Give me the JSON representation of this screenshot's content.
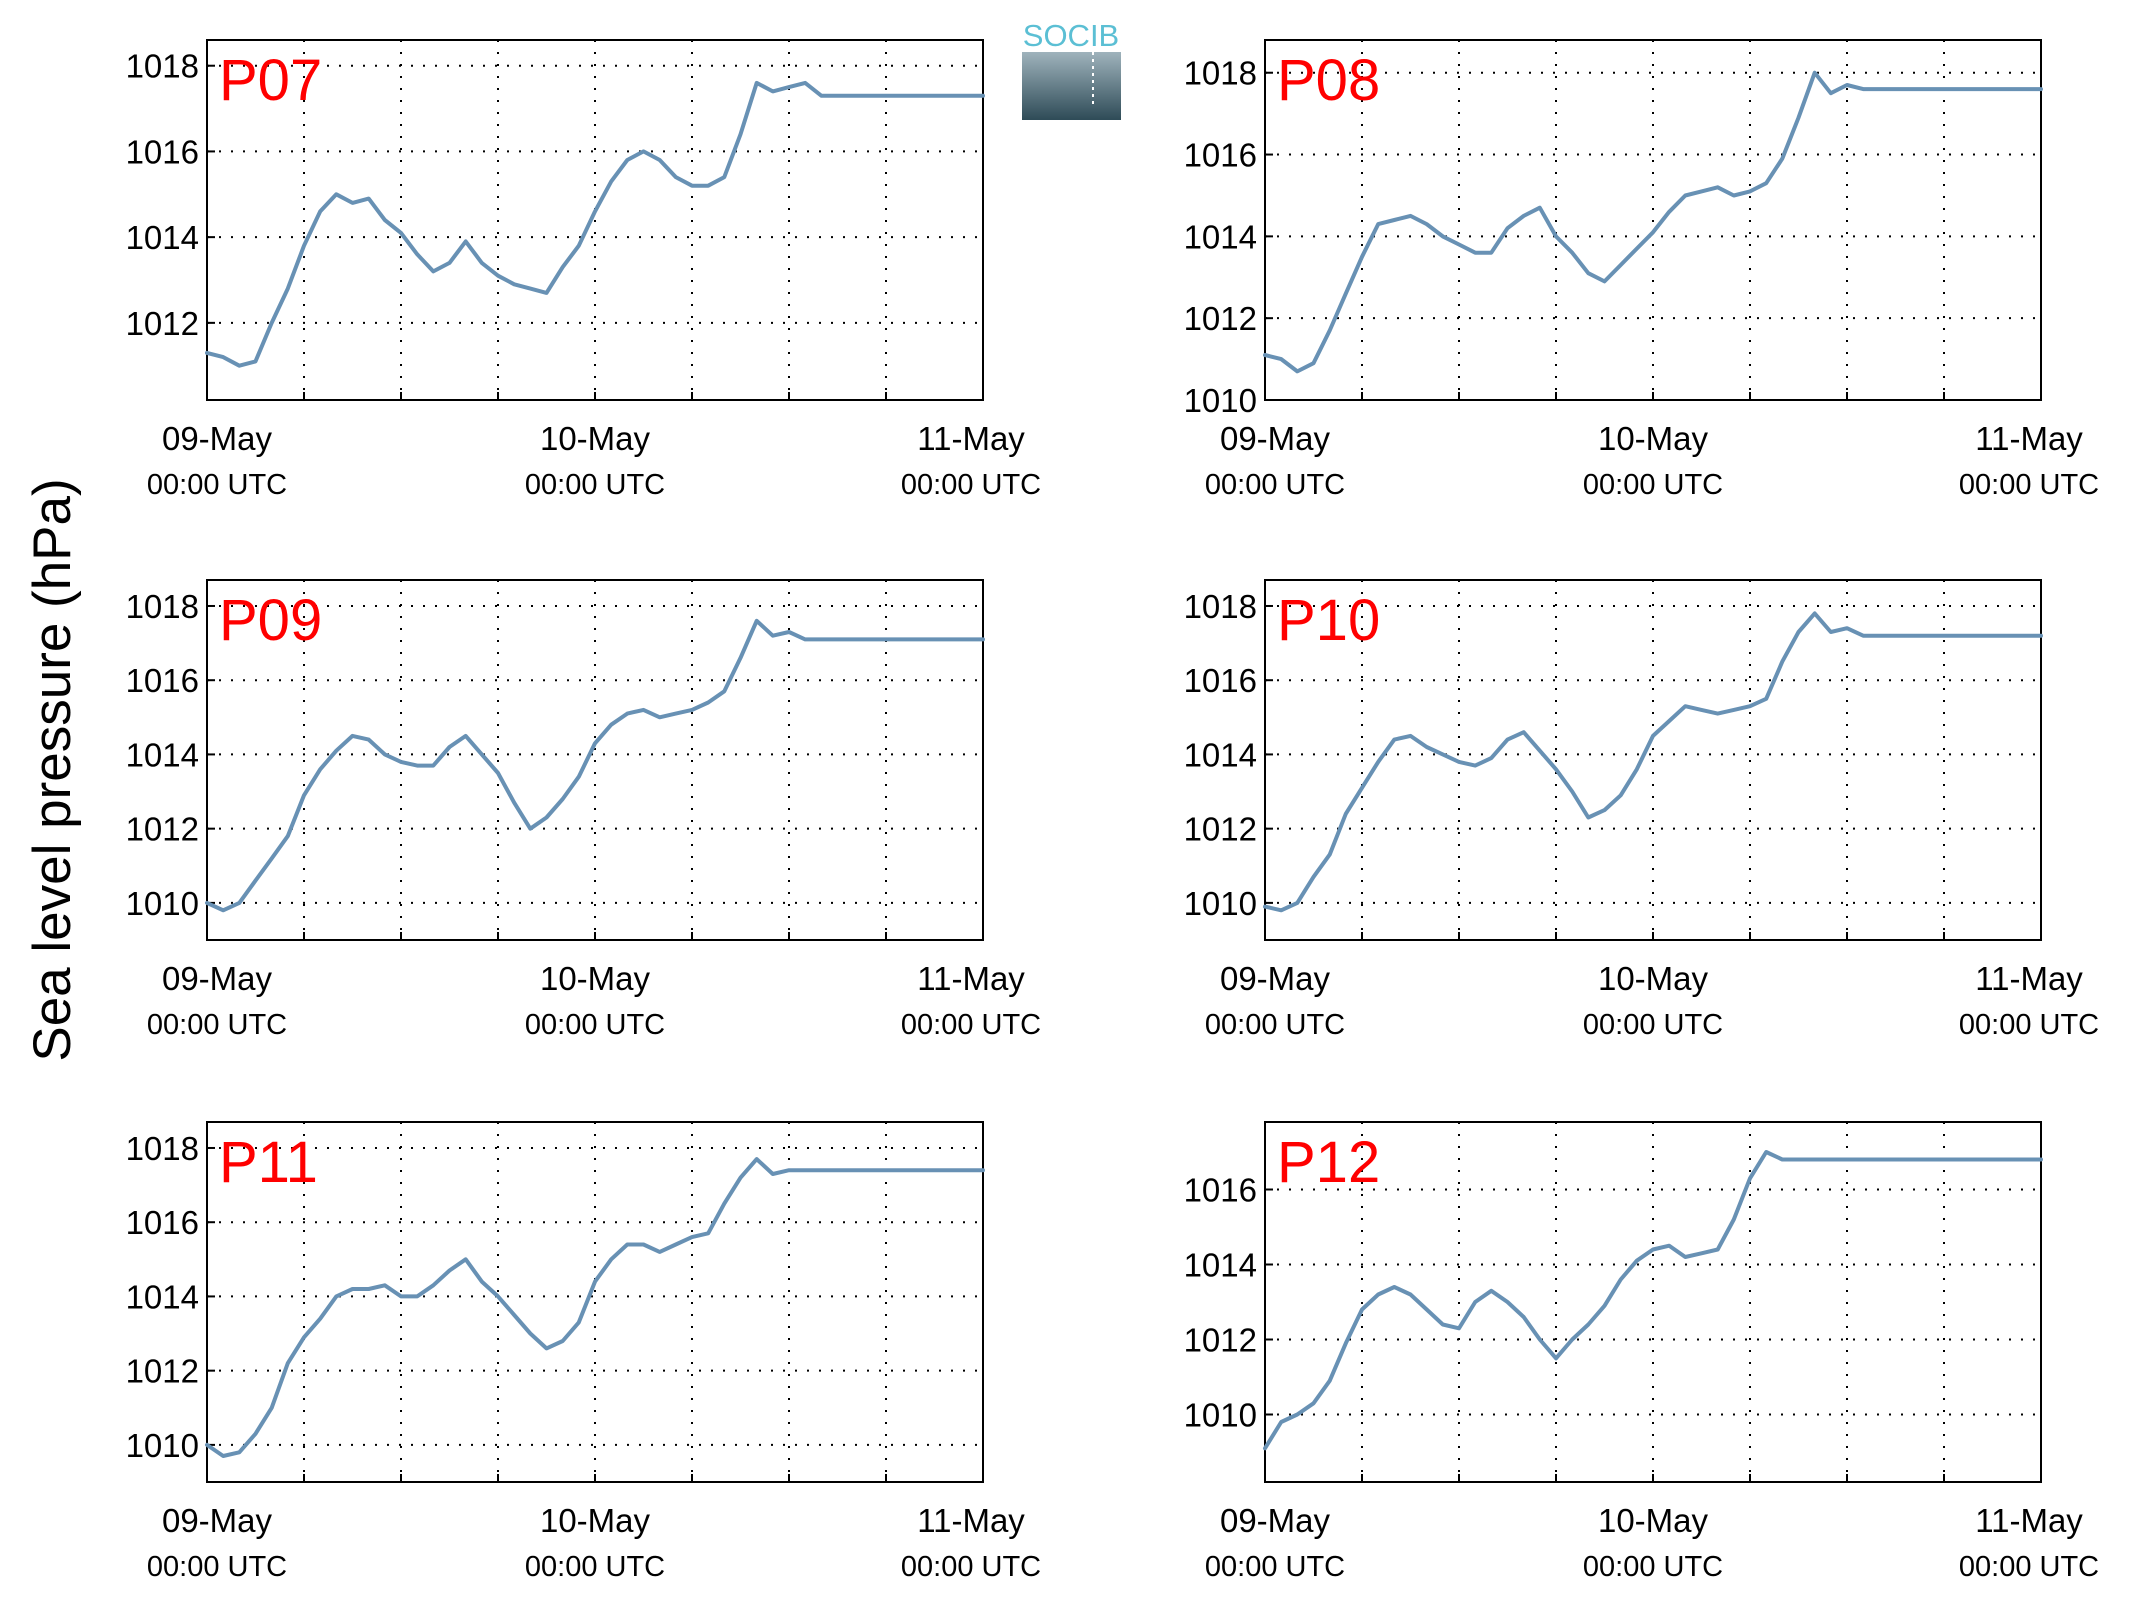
{
  "ylabel": "Sea level pressure (hPa)",
  "logo": {
    "text": "SOCIB"
  },
  "colors": {
    "series": "#6891b4",
    "label": "#ff0000",
    "logo_top": "#5bbfd4",
    "logo_bottom": "#2e4b57"
  },
  "chart_data": [
    {
      "type": "line",
      "label": "P07",
      "x_ticks": [
        {
          "line1": "09-May",
          "line2": "00:00 UTC"
        },
        {
          "line1": "10-May",
          "line2": "00:00 UTC"
        },
        {
          "line1": "11-May",
          "line2": "00:00 UTC"
        }
      ],
      "xlim": [
        0,
        48
      ],
      "x_unit": "hours since 09-May 00:00 UTC",
      "yticks": [
        "1012",
        "1014",
        "1016",
        "1018"
      ],
      "ylim": [
        1010.2,
        1018.6
      ],
      "grid": true,
      "series": [
        {
          "x": [
            0,
            1,
            2,
            3,
            4,
            5,
            6,
            7,
            8,
            9,
            10,
            11,
            12,
            13,
            14,
            15,
            16,
            17,
            18,
            19,
            20,
            21,
            22,
            23,
            24,
            25,
            26,
            27,
            28,
            29,
            30,
            31,
            32,
            33,
            34,
            35,
            36,
            37,
            38,
            39,
            40,
            41,
            42,
            43,
            44,
            45,
            46,
            47,
            48
          ],
          "values": [
            1011.3,
            1011.2,
            1011.0,
            1011.1,
            1012.0,
            1012.8,
            1013.8,
            1014.6,
            1015.0,
            1014.8,
            1014.9,
            1014.4,
            1014.1,
            1013.6,
            1013.2,
            1013.4,
            1013.9,
            1013.4,
            1013.1,
            1012.9,
            1012.8,
            1012.7,
            1013.3,
            1013.8,
            1014.6,
            1015.3,
            1015.8,
            1016.0,
            1015.8,
            1015.4,
            1015.2,
            1015.2,
            1015.4,
            1016.4,
            1017.6,
            1017.4,
            1017.5,
            1017.6,
            1017.3,
            1017.3,
            1017.3,
            1017.3,
            1017.3,
            1017.3,
            1017.3,
            1017.3,
            1017.3,
            1017.3,
            1017.3
          ]
        }
      ]
    },
    {
      "type": "line",
      "label": "P08",
      "x_ticks": [
        {
          "line1": "09-May",
          "line2": "00:00 UTC"
        },
        {
          "line1": "10-May",
          "line2": "00:00 UTC"
        },
        {
          "line1": "11-May",
          "line2": "00:00 UTC"
        }
      ],
      "xlim": [
        0,
        48
      ],
      "x_unit": "hours since 09-May 00:00 UTC",
      "yticks": [
        "1010",
        "1012",
        "1014",
        "1016",
        "1018"
      ],
      "ylim": [
        1010,
        1018.8
      ],
      "grid": true,
      "series": [
        {
          "x": [
            0,
            1,
            2,
            3,
            4,
            5,
            6,
            7,
            8,
            9,
            10,
            11,
            12,
            13,
            14,
            15,
            16,
            17,
            18,
            19,
            20,
            21,
            22,
            23,
            24,
            25,
            26,
            27,
            28,
            29,
            30,
            31,
            32,
            33,
            34,
            35,
            36,
            37,
            38,
            39,
            40,
            41,
            42,
            43,
            44,
            45,
            46,
            47,
            48
          ],
          "values": [
            1011.1,
            1011.0,
            1010.7,
            1010.9,
            1011.7,
            1012.6,
            1013.5,
            1014.3,
            1014.4,
            1014.5,
            1014.3,
            1014.0,
            1013.8,
            1013.6,
            1013.6,
            1014.2,
            1014.5,
            1014.7,
            1014.0,
            1013.6,
            1013.1,
            1012.9,
            1013.3,
            1013.7,
            1014.1,
            1014.6,
            1015.0,
            1015.1,
            1015.2,
            1015.0,
            1015.1,
            1015.3,
            1015.9,
            1016.9,
            1018.0,
            1017.5,
            1017.7,
            1017.6,
            1017.6,
            1017.6,
            1017.6,
            1017.6,
            1017.6,
            1017.6,
            1017.6,
            1017.6,
            1017.6,
            1017.6,
            1017.6
          ]
        }
      ]
    },
    {
      "type": "line",
      "label": "P09",
      "x_ticks": [
        {
          "line1": "09-May",
          "line2": "00:00 UTC"
        },
        {
          "line1": "10-May",
          "line2": "00:00 UTC"
        },
        {
          "line1": "11-May",
          "line2": "00:00 UTC"
        }
      ],
      "xlim": [
        0,
        48
      ],
      "x_unit": "hours since 09-May 00:00 UTC",
      "yticks": [
        "1010",
        "1012",
        "1014",
        "1016",
        "1018"
      ],
      "ylim": [
        1009,
        1018.7
      ],
      "grid": true,
      "series": [
        {
          "x": [
            0,
            1,
            2,
            3,
            4,
            5,
            6,
            7,
            8,
            9,
            10,
            11,
            12,
            13,
            14,
            15,
            16,
            17,
            18,
            19,
            20,
            21,
            22,
            23,
            24,
            25,
            26,
            27,
            28,
            29,
            30,
            31,
            32,
            33,
            34,
            35,
            36,
            37,
            38,
            39,
            40,
            41,
            42,
            43,
            44,
            45,
            46,
            47,
            48
          ],
          "values": [
            1010.0,
            1009.8,
            1010.0,
            1010.6,
            1011.2,
            1011.8,
            1012.9,
            1013.6,
            1014.1,
            1014.5,
            1014.4,
            1014.0,
            1013.8,
            1013.7,
            1013.7,
            1014.2,
            1014.5,
            1014.0,
            1013.5,
            1012.7,
            1012.0,
            1012.3,
            1012.8,
            1013.4,
            1014.3,
            1014.8,
            1015.1,
            1015.2,
            1015.0,
            1015.1,
            1015.2,
            1015.4,
            1015.7,
            1016.6,
            1017.6,
            1017.2,
            1017.3,
            1017.1,
            1017.1,
            1017.1,
            1017.1,
            1017.1,
            1017.1,
            1017.1,
            1017.1,
            1017.1,
            1017.1,
            1017.1,
            1017.1
          ]
        }
      ]
    },
    {
      "type": "line",
      "label": "P10",
      "x_ticks": [
        {
          "line1": "09-May",
          "line2": "00:00 UTC"
        },
        {
          "line1": "10-May",
          "line2": "00:00 UTC"
        },
        {
          "line1": "11-May",
          "line2": "00:00 UTC"
        }
      ],
      "xlim": [
        0,
        48
      ],
      "x_unit": "hours since 09-May 00:00 UTC",
      "yticks": [
        "1010",
        "1012",
        "1014",
        "1016",
        "1018"
      ],
      "ylim": [
        1009,
        1018.7
      ],
      "grid": true,
      "series": [
        {
          "x": [
            0,
            1,
            2,
            3,
            4,
            5,
            6,
            7,
            8,
            9,
            10,
            11,
            12,
            13,
            14,
            15,
            16,
            17,
            18,
            19,
            20,
            21,
            22,
            23,
            24,
            25,
            26,
            27,
            28,
            29,
            30,
            31,
            32,
            33,
            34,
            35,
            36,
            37,
            38,
            39,
            40,
            41,
            42,
            43,
            44,
            45,
            46,
            47,
            48
          ],
          "values": [
            1009.9,
            1009.8,
            1010.0,
            1010.7,
            1011.3,
            1012.4,
            1013.1,
            1013.8,
            1014.4,
            1014.5,
            1014.2,
            1014.0,
            1013.8,
            1013.7,
            1013.9,
            1014.4,
            1014.6,
            1014.1,
            1013.6,
            1013.0,
            1012.3,
            1012.5,
            1012.9,
            1013.6,
            1014.5,
            1014.9,
            1015.3,
            1015.2,
            1015.1,
            1015.2,
            1015.3,
            1015.5,
            1016.5,
            1017.3,
            1017.8,
            1017.3,
            1017.4,
            1017.2,
            1017.2,
            1017.2,
            1017.2,
            1017.2,
            1017.2,
            1017.2,
            1017.2,
            1017.2,
            1017.2,
            1017.2,
            1017.2
          ]
        }
      ]
    },
    {
      "type": "line",
      "label": "P11",
      "x_ticks": [
        {
          "line1": "09-May",
          "line2": "00:00 UTC"
        },
        {
          "line1": "10-May",
          "line2": "00:00 UTC"
        },
        {
          "line1": "11-May",
          "line2": "00:00 UTC"
        }
      ],
      "xlim": [
        0,
        48
      ],
      "x_unit": "hours since 09-May 00:00 UTC",
      "yticks": [
        "1010",
        "1012",
        "1014",
        "1016",
        "1018"
      ],
      "ylim": [
        1009,
        1018.7
      ],
      "grid": true,
      "series": [
        {
          "x": [
            0,
            1,
            2,
            3,
            4,
            5,
            6,
            7,
            8,
            9,
            10,
            11,
            12,
            13,
            14,
            15,
            16,
            17,
            18,
            19,
            20,
            21,
            22,
            23,
            24,
            25,
            26,
            27,
            28,
            29,
            30,
            31,
            32,
            33,
            34,
            35,
            36,
            37,
            38,
            39,
            40,
            41,
            42,
            43,
            44,
            45,
            46,
            47,
            48
          ],
          "values": [
            1010.0,
            1009.7,
            1009.8,
            1010.3,
            1011.0,
            1012.2,
            1012.9,
            1013.4,
            1014.0,
            1014.2,
            1014.2,
            1014.3,
            1014.0,
            1014.0,
            1014.3,
            1014.7,
            1015.0,
            1014.4,
            1014.0,
            1013.5,
            1013.0,
            1012.6,
            1012.8,
            1013.3,
            1014.4,
            1015.0,
            1015.4,
            1015.4,
            1015.2,
            1015.4,
            1015.6,
            1015.7,
            1016.5,
            1017.2,
            1017.7,
            1017.3,
            1017.4,
            1017.4,
            1017.4,
            1017.4,
            1017.4,
            1017.4,
            1017.4,
            1017.4,
            1017.4,
            1017.4,
            1017.4,
            1017.4,
            1017.4
          ]
        }
      ]
    },
    {
      "type": "line",
      "label": "P12",
      "x_ticks": [
        {
          "line1": "09-May",
          "line2": "00:00 UTC"
        },
        {
          "line1": "10-May",
          "line2": "00:00 UTC"
        },
        {
          "line1": "11-May",
          "line2": "00:00 UTC"
        }
      ],
      "xlim": [
        0,
        48
      ],
      "x_unit": "hours since 09-May 00:00 UTC",
      "yticks": [
        "1010",
        "1012",
        "1014",
        "1016"
      ],
      "ylim": [
        1008.2,
        1017.8
      ],
      "grid": true,
      "series": [
        {
          "x": [
            0,
            1,
            2,
            3,
            4,
            5,
            6,
            7,
            8,
            9,
            10,
            11,
            12,
            13,
            14,
            15,
            16,
            17,
            18,
            19,
            20,
            21,
            22,
            23,
            24,
            25,
            26,
            27,
            28,
            29,
            30,
            31,
            32,
            33,
            34,
            35,
            36,
            37,
            38,
            39,
            40,
            41,
            42,
            43,
            44,
            45,
            46,
            47,
            48
          ],
          "values": [
            1009.1,
            1009.8,
            1010.0,
            1010.3,
            1010.9,
            1011.9,
            1012.8,
            1013.2,
            1013.4,
            1013.2,
            1012.8,
            1012.4,
            1012.3,
            1013.0,
            1013.3,
            1013.0,
            1012.6,
            1012.0,
            1011.5,
            1012.0,
            1012.4,
            1012.9,
            1013.6,
            1014.1,
            1014.4,
            1014.5,
            1014.2,
            1014.3,
            1014.4,
            1015.2,
            1016.3,
            1017.0,
            1016.8,
            1016.8,
            1016.8,
            1016.8,
            1016.8,
            1016.8,
            1016.8,
            1016.8,
            1016.8,
            1016.8,
            1016.8,
            1016.8,
            1016.8,
            1016.8,
            1016.8,
            1016.8,
            1016.8
          ]
        }
      ]
    }
  ]
}
